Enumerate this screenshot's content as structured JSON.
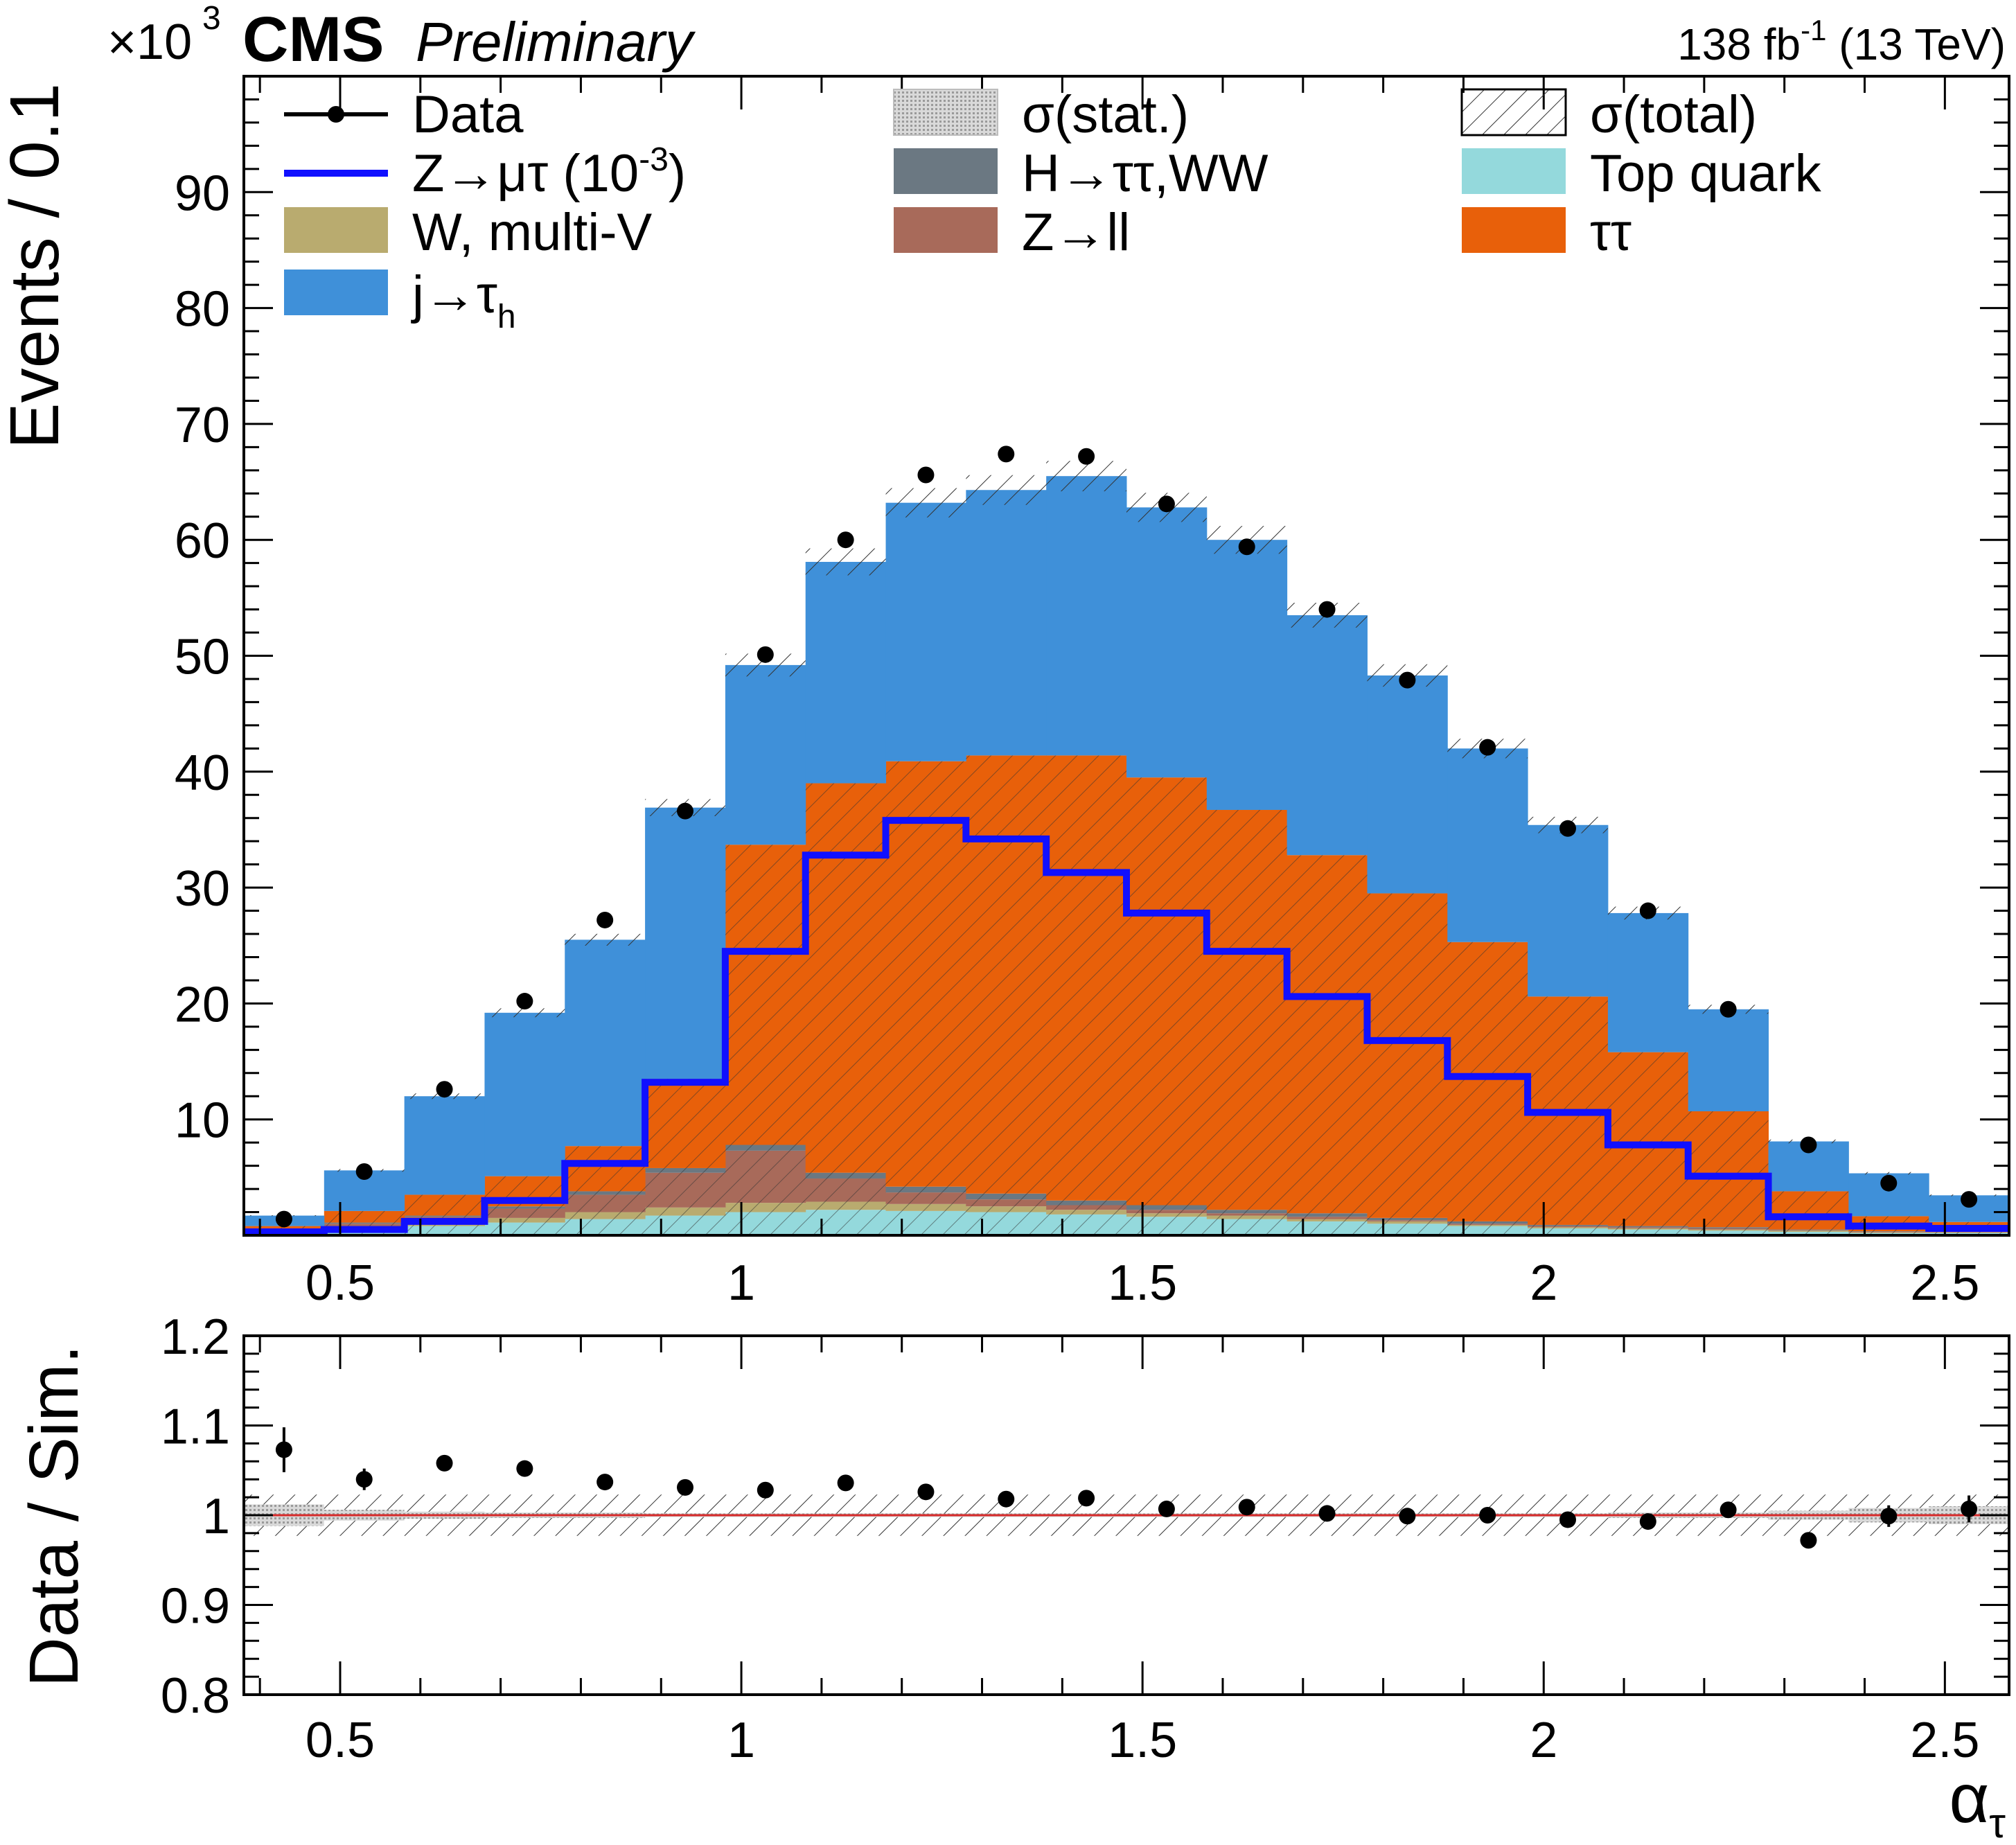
{
  "header": {
    "exponent_base": "×10",
    "exponent_power": "3",
    "experiment": "CMS",
    "status": "Preliminary",
    "lumi_prefix": "138 fb",
    "lumi_power": "-1",
    "lumi_suffix": " (13 TeV)"
  },
  "legend": [
    {
      "key": "data",
      "label": "Data",
      "kind": "marker",
      "color": "#000000"
    },
    {
      "key": "stat",
      "label": "σ(stat.)",
      "kind": "stat",
      "color": "#bdbdbd"
    },
    {
      "key": "total",
      "label": "σ(total)",
      "kind": "hatch",
      "color": "#000000"
    },
    {
      "key": "signal",
      "label": "Z→μτ (10",
      "label_power": "-3",
      "label_close": ")",
      "kind": "line",
      "color": "#1010ff"
    },
    {
      "key": "higgs",
      "label": "H→ττ,WW",
      "kind": "fill",
      "color": "#6b7882"
    },
    {
      "key": "top",
      "label": "Top quark",
      "kind": "fill",
      "color": "#94d9dc"
    },
    {
      "key": "wv",
      "label": "W, multi-V",
      "kind": "fill",
      "color": "#b9ab6f"
    },
    {
      "key": "zll",
      "label": "Z→ll",
      "kind": "fill",
      "color": "#a86a5a"
    },
    {
      "key": "tautau",
      "label": "ττ",
      "kind": "fill",
      "color": "#e8600a"
    },
    {
      "key": "jetfake",
      "label": "j→τ",
      "label_sub": "h",
      "kind": "fill",
      "color": "#3f90d9"
    }
  ],
  "chart_data": [
    {
      "type": "bar",
      "title": "CMS Preliminary",
      "ylabel": "Events / 0.1",
      "y_multiplier": "×10^3",
      "xlim": [
        0.38,
        2.58
      ],
      "ylim": [
        0,
        100
      ],
      "x_ticks": [
        0.5,
        1,
        1.5,
        2,
        2.5
      ],
      "x_tick_labels": [
        "0.5",
        "1",
        "1.5",
        "2",
        "2.5"
      ],
      "y_ticks": [
        10,
        20,
        30,
        40,
        50,
        60,
        70,
        80,
        90
      ],
      "y_tick_labels": [
        "10",
        "20",
        "30",
        "40",
        "50",
        "60",
        "70",
        "80",
        "90"
      ],
      "bin_edges": [
        0.38,
        0.48,
        0.58,
        0.68,
        0.78,
        0.88,
        0.98,
        1.08,
        1.18,
        1.28,
        1.38,
        1.48,
        1.58,
        1.68,
        1.78,
        1.88,
        1.98,
        2.08,
        2.18,
        2.28,
        2.38,
        2.48,
        2.58
      ],
      "stacked": true,
      "series": [
        {
          "name": "Top quark",
          "color": "#94d9dc",
          "values": [
            0.3,
            0.5,
            0.8,
            1.1,
            1.4,
            1.7,
            2.0,
            2.2,
            2.1,
            2.0,
            1.8,
            1.6,
            1.4,
            1.2,
            1.0,
            0.8,
            0.6,
            0.5,
            0.4,
            0.3,
            0.2,
            0.2
          ]
        },
        {
          "name": "W, multi-V",
          "color": "#b9ab6f",
          "values": [
            0.1,
            0.2,
            0.3,
            0.4,
            0.6,
            0.7,
            0.8,
            0.7,
            0.6,
            0.5,
            0.4,
            0.3,
            0.3,
            0.2,
            0.2,
            0.1,
            0.1,
            0.1,
            0.1,
            0.1,
            0.05,
            0.05
          ]
        },
        {
          "name": "Z→ll",
          "color": "#a86a5a",
          "values": [
            0.1,
            0.3,
            0.5,
            0.8,
            1.5,
            3.0,
            4.5,
            2.0,
            1.0,
            0.6,
            0.4,
            0.3,
            0.2,
            0.2,
            0.1,
            0.1,
            0.1,
            0.1,
            0.1,
            0.05,
            0.05,
            0.05
          ]
        },
        {
          "name": "H→ττ,WW",
          "color": "#6b7882",
          "values": [
            0.0,
            0.1,
            0.1,
            0.2,
            0.3,
            0.4,
            0.5,
            0.5,
            0.5,
            0.5,
            0.4,
            0.4,
            0.3,
            0.3,
            0.2,
            0.2,
            0.1,
            0.1,
            0.1,
            0.05,
            0.05,
            0.05
          ]
        },
        {
          "name": "ττ",
          "color": "#e8600a",
          "values": [
            0.3,
            1.0,
            1.8,
            2.6,
            3.9,
            7.7,
            25.9,
            33.6,
            36.7,
            37.8,
            38.4,
            36.9,
            34.5,
            30.9,
            28.0,
            24.1,
            19.7,
            15.0,
            10.0,
            3.3,
            1.3,
            0.8
          ]
        },
        {
          "name": "j→τh",
          "color": "#3f90d9",
          "values": [
            0.9,
            3.5,
            8.5,
            14.1,
            17.8,
            23.4,
            15.5,
            19.1,
            22.3,
            22.9,
            24.1,
            23.3,
            23.3,
            20.7,
            18.8,
            16.7,
            14.8,
            12.0,
            8.8,
            4.3,
            3.7,
            2.3
          ]
        }
      ],
      "signal": {
        "name": "Z→μτ (10^-3)",
        "color": "#1010ff",
        "values": [
          0.3,
          0.5,
          1.2,
          3.0,
          6.2,
          13.2,
          24.5,
          32.8,
          35.8,
          34.2,
          31.3,
          27.8,
          24.5,
          20.6,
          16.8,
          13.7,
          10.6,
          7.8,
          5.1,
          1.6,
          0.8,
          0.6
        ]
      },
      "data": {
        "name": "Data",
        "x": [
          0.43,
          0.53,
          0.63,
          0.73,
          0.83,
          0.93,
          1.03,
          1.13,
          1.23,
          1.33,
          1.43,
          1.53,
          1.63,
          1.73,
          1.83,
          1.93,
          2.03,
          2.13,
          2.23,
          2.33,
          2.43,
          2.53
        ],
        "y": [
          1.4,
          5.5,
          12.6,
          20.2,
          27.2,
          36.6,
          50.1,
          60.0,
          65.6,
          67.4,
          67.2,
          63.1,
          59.4,
          54.0,
          47.9,
          42.1,
          35.1,
          28.0,
          19.5,
          7.8,
          4.5,
          3.1
        ]
      }
    },
    {
      "type": "scatter",
      "title": "Data / Sim. ratio",
      "ylabel": "Data / Sim.",
      "xlabel": "α",
      "xlabel_sub": "τ",
      "xlim": [
        0.38,
        2.58
      ],
      "ylim": [
        0.8,
        1.2
      ],
      "x_ticks": [
        0.5,
        1,
        1.5,
        2,
        2.5
      ],
      "x_tick_labels": [
        "0.5",
        "1",
        "1.5",
        "2",
        "2.5"
      ],
      "y_ticks": [
        0.8,
        0.9,
        1,
        1.1,
        1.2
      ],
      "y_tick_labels": [
        "0.8",
        "0.9",
        "1",
        "1.1",
        "1.2"
      ],
      "reference_line": 1.0,
      "reference_color": "#d62a2a",
      "total_unc_band": 0.023,
      "stat_unc_band": [
        0.012,
        0.006,
        0.004,
        0.003,
        0.003,
        0.002,
        0.002,
        0.002,
        0.002,
        0.002,
        0.002,
        0.002,
        0.002,
        0.002,
        0.002,
        0.002,
        0.002,
        0.003,
        0.003,
        0.005,
        0.008,
        0.01
      ],
      "x": [
        0.43,
        0.53,
        0.63,
        0.73,
        0.83,
        0.93,
        1.03,
        1.13,
        1.23,
        1.33,
        1.43,
        1.53,
        1.63,
        1.73,
        1.83,
        1.93,
        2.03,
        2.13,
        2.23,
        2.33,
        2.43,
        2.53
      ],
      "y": [
        1.073,
        1.04,
        1.058,
        1.052,
        1.037,
        1.031,
        1.028,
        1.036,
        1.026,
        1.018,
        1.019,
        1.007,
        1.009,
        1.002,
        0.999,
        1.0,
        0.995,
        0.993,
        1.006,
        0.972,
        0.999,
        1.007
      ],
      "yerr": [
        0.025,
        0.012,
        0.006,
        0.005,
        0.004,
        0.003,
        0.003,
        0.003,
        0.003,
        0.003,
        0.003,
        0.003,
        0.003,
        0.003,
        0.003,
        0.003,
        0.003,
        0.004,
        0.005,
        0.006,
        0.012,
        0.015
      ]
    }
  ]
}
